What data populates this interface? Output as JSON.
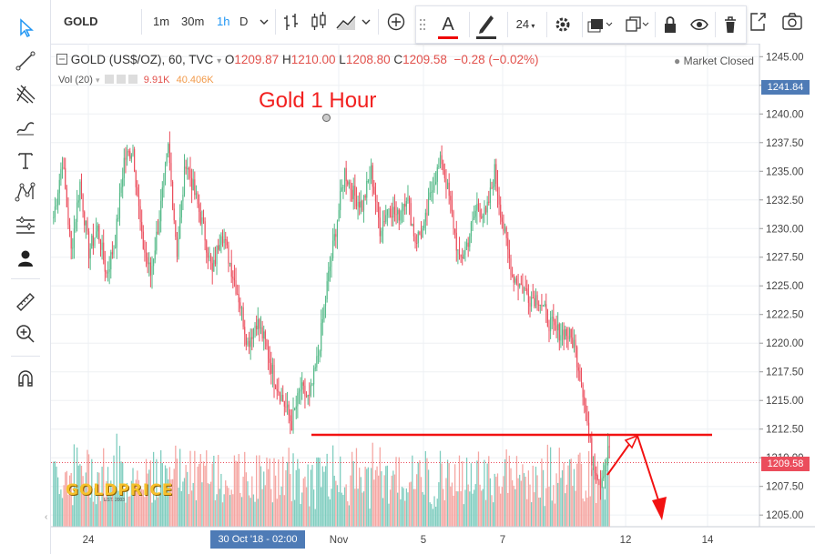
{
  "toolbar": {
    "symbol": "GOLD",
    "intervals": [
      "1m",
      "30m",
      "1h",
      "D"
    ],
    "active_interval": "1h"
  },
  "float_toolbar": {
    "text_icon": "A",
    "font_size": "24"
  },
  "legend": {
    "name": "GOLD (US$/OZ), 60, TVC",
    "o_label": "O",
    "o_val": "1209.87",
    "h_label": "H",
    "h_val": "1210.00",
    "l_label": "L",
    "l_val": "1208.80",
    "c_label": "C",
    "c_val": "1209.58",
    "change": "−0.28 (−0.02%)",
    "status": "Market Closed",
    "vol_label": "Vol (20)",
    "vol_1": "9.91K",
    "vol_2": "40.406K"
  },
  "annotation": {
    "title": "Gold 1 Hour"
  },
  "logo": {
    "text": "GOLDPRICE",
    "sub": "EST. 2003"
  },
  "chart_data": {
    "type": "candlestick",
    "price_axis": {
      "ticks": [
        1245.0,
        1242.5,
        1240.0,
        1237.5,
        1235.0,
        1232.5,
        1230.0,
        1227.5,
        1225.0,
        1222.5,
        1220.0,
        1217.5,
        1215.0,
        1212.5,
        1210.0,
        1207.5,
        1205.0
      ],
      "tick_labels": [
        "1245.00",
        "1242.50",
        "1240.00",
        "1237.50",
        "1235.00",
        "1232.50",
        "1230.00",
        "1227.50",
        "1225.00",
        "1222.50",
        "1220.00",
        "1217.50",
        "1215.00",
        "1212.50",
        "1210.00",
        "1207.50",
        "1205.00"
      ],
      "range": [
        1204.3,
        1245.5
      ]
    },
    "time_axis": {
      "labels": [
        "24",
        "Nov",
        "5",
        "7",
        "12",
        "14"
      ]
    },
    "crosshair_price": "1241.84",
    "last_price": "1209.58",
    "crosshair_time": "30 Oct '18 - 02:00",
    "support_level": 1212.0,
    "close_path": [
      1231,
      1236,
      1228,
      1234,
      1228,
      1230,
      1226,
      1229,
      1236,
      1237,
      1229,
      1226,
      1231,
      1237,
      1228,
      1236,
      1233,
      1230,
      1226,
      1230,
      1227,
      1224,
      1220,
      1222,
      1220,
      1217,
      1215,
      1213,
      1216,
      1215,
      1219,
      1225,
      1230,
      1235,
      1233,
      1232,
      1235,
      1230,
      1232,
      1231,
      1233,
      1229,
      1230,
      1234,
      1236,
      1232,
      1227,
      1229,
      1232,
      1231,
      1235,
      1230,
      1226,
      1225,
      1224,
      1224,
      1222,
      1221,
      1221,
      1220,
      1216,
      1210,
      1208,
      1211
    ],
    "volume_max": 40406,
    "colors": {
      "up": "#53b987",
      "down": "#eb4d5c",
      "vol_up": "#7fcdbf",
      "vol_down": "#f5a6a2",
      "support": "#f21212",
      "arrow": "#f21212"
    }
  }
}
